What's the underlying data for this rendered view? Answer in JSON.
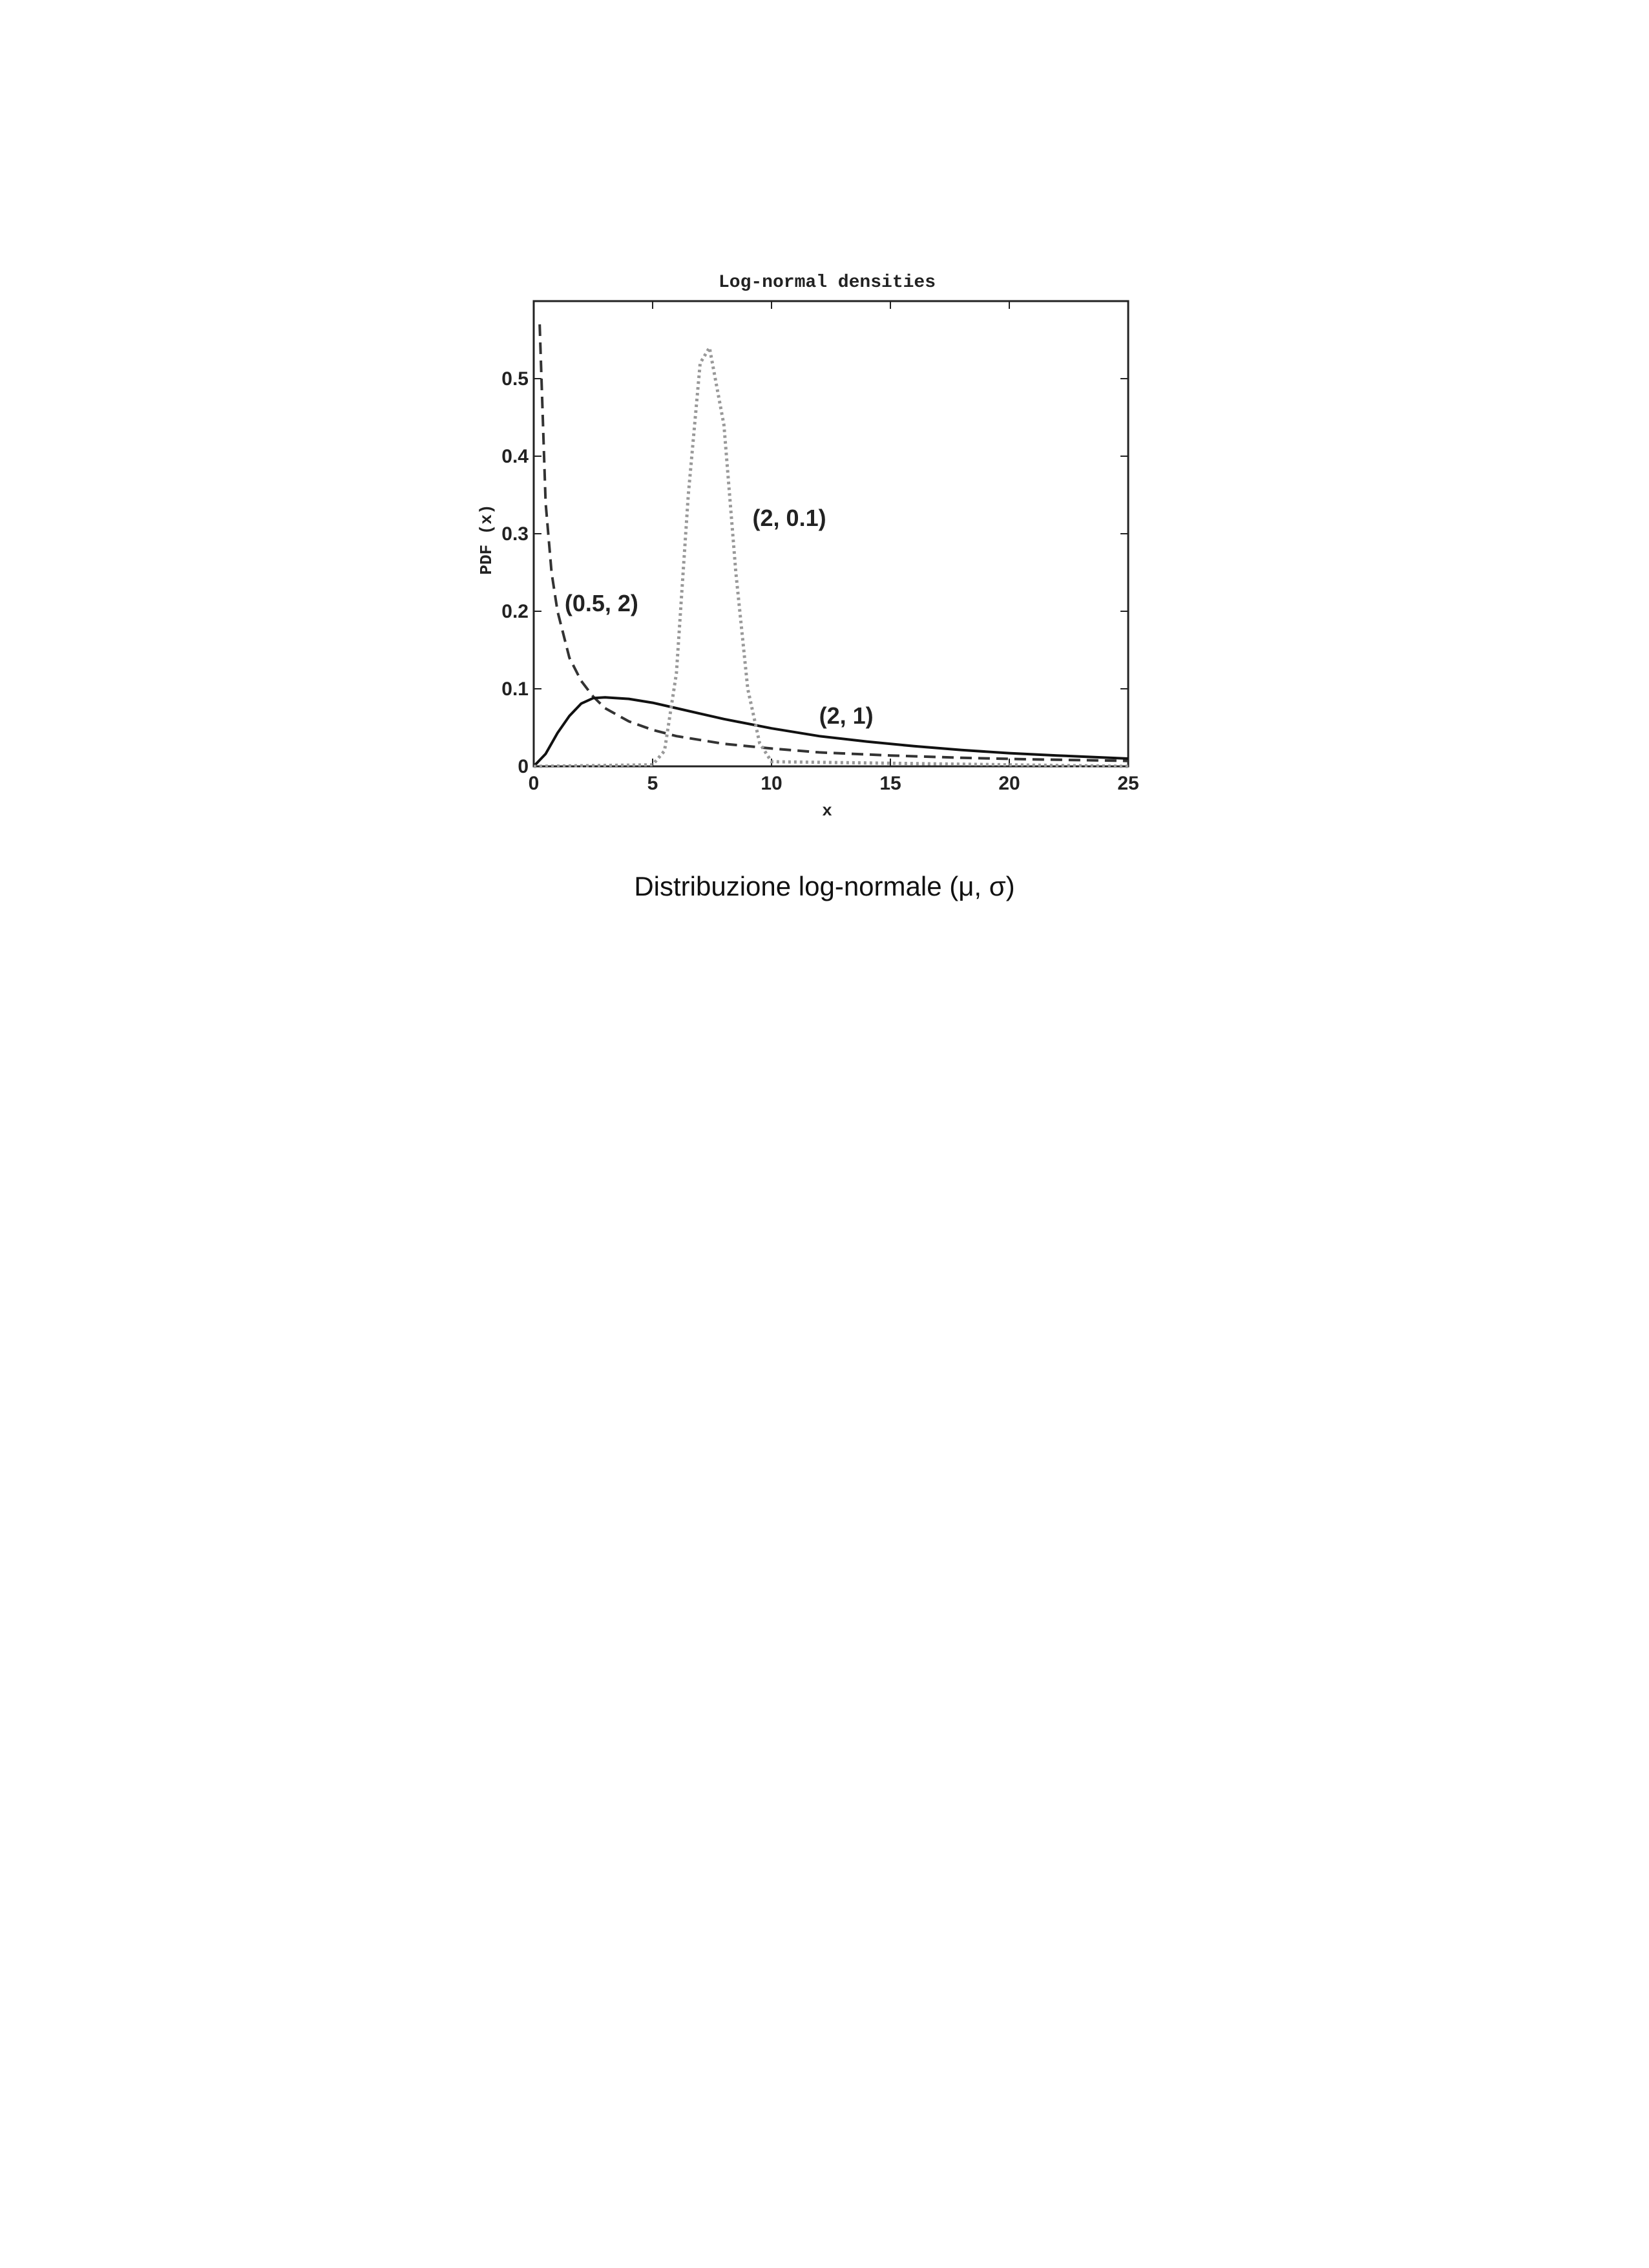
{
  "chart_data": {
    "type": "line",
    "title": "Log-normal densities",
    "xlabel": "x",
    "ylabel": "PDF (x)",
    "xlim": [
      0,
      25
    ],
    "ylim": [
      0,
      0.6
    ],
    "x_ticks": [
      "0",
      "5",
      "10",
      "15",
      "20",
      "25"
    ],
    "y_ticks": [
      "0",
      "0.1",
      "0.2",
      "0.3",
      "0.4",
      "0.5"
    ],
    "grid": false,
    "series": [
      {
        "name": "(0.5, 2)",
        "style": "dashed",
        "color": "#333333",
        "x": [
          0.25,
          0.5,
          0.75,
          1,
          1.5,
          2,
          2.5,
          3,
          4,
          5,
          6,
          8,
          10,
          12,
          15,
          18,
          21,
          25
        ],
        "y": [
          0.57,
          0.34,
          0.25,
          0.2,
          0.14,
          0.11,
          0.09,
          0.075,
          0.058,
          0.047,
          0.039,
          0.029,
          0.023,
          0.018,
          0.014,
          0.011,
          0.009,
          0.007
        ]
      },
      {
        "name": "(2, 1)",
        "style": "solid",
        "color": "#111111",
        "x": [
          0,
          0.5,
          1,
          1.5,
          2,
          2.5,
          3,
          4,
          5,
          6,
          7,
          8,
          10,
          12,
          14,
          16,
          18,
          20,
          22,
          25
        ],
        "y": [
          0,
          0.016,
          0.043,
          0.065,
          0.081,
          0.088,
          0.089,
          0.087,
          0.082,
          0.075,
          0.068,
          0.061,
          0.049,
          0.039,
          0.032,
          0.026,
          0.021,
          0.017,
          0.014,
          0.01
        ]
      },
      {
        "name": "(2, 0.1)",
        "style": "dotted",
        "color": "#999999",
        "x": [
          0,
          5,
          5.5,
          6,
          6.5,
          7,
          7.39,
          8,
          8.5,
          9,
          9.5,
          10,
          25
        ],
        "y": [
          0,
          0.002,
          0.02,
          0.12,
          0.35,
          0.52,
          0.54,
          0.44,
          0.25,
          0.1,
          0.03,
          0.006,
          0
        ]
      }
    ]
  },
  "caption": "Distribuzione log-normale (μ, σ)"
}
